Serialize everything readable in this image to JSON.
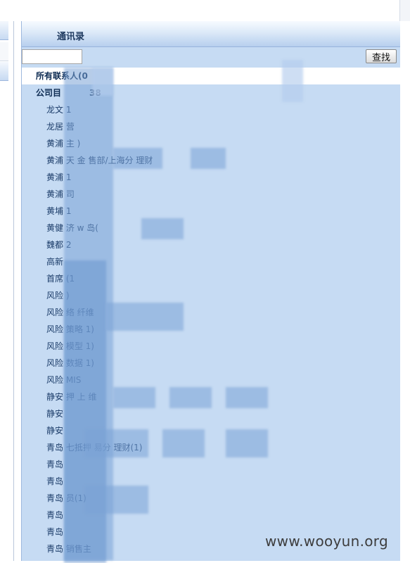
{
  "panel": {
    "title": "通讯录"
  },
  "search": {
    "value": "",
    "placeholder": "",
    "button_label": "查找"
  },
  "tree": {
    "items": [
      {
        "label": "所有联系人(0",
        "level": 0,
        "selected": true
      },
      {
        "label": "公司目",
        "level": 0,
        "selected": false,
        "suffix": "38"
      },
      {
        "label": "龙文      1",
        "level": 1
      },
      {
        "label": "龙居      营",
        "level": 1
      },
      {
        "label": "黄浦      主      )",
        "level": 1
      },
      {
        "label": "黄浦      天      金      售部/上海分      理财",
        "level": 1
      },
      {
        "label": "黄浦      1",
        "level": 1
      },
      {
        "label": "黄浦      司",
        "level": 1
      },
      {
        "label": "黄埔      1",
        "level": 1
      },
      {
        "label": "黄健      济      w      岛(",
        "level": 1
      },
      {
        "label": "魏都      2",
        "level": 1
      },
      {
        "label": "高新",
        "level": 1
      },
      {
        "label": "首席      (1",
        "level": 1
      },
      {
        "label": "风险      )",
        "level": 1
      },
      {
        "label": "风险      络      纤维",
        "level": 1
      },
      {
        "label": "风险      策略      1)",
        "level": 1
      },
      {
        "label": "风险      模型      1)",
        "level": 1
      },
      {
        "label": "风险      数据      1)",
        "level": 1
      },
      {
        "label": "风险      MIS",
        "level": 1
      },
      {
        "label": "静安      押      上      维",
        "level": 1
      },
      {
        "label": "静安",
        "level": 1
      },
      {
        "label": "静安",
        "level": 1
      },
      {
        "label": "青岛      七抵押      易分      理财(1)",
        "level": 1
      },
      {
        "label": "青岛",
        "level": 1
      },
      {
        "label": "青岛",
        "level": 1
      },
      {
        "label": "青岛      员(1)",
        "level": 1
      },
      {
        "label": "青岛",
        "level": 1
      },
      {
        "label": "青岛",
        "level": 1
      },
      {
        "label": "青岛      销售主",
        "level": 1
      }
    ]
  },
  "watermark": "www.wooyun.org"
}
